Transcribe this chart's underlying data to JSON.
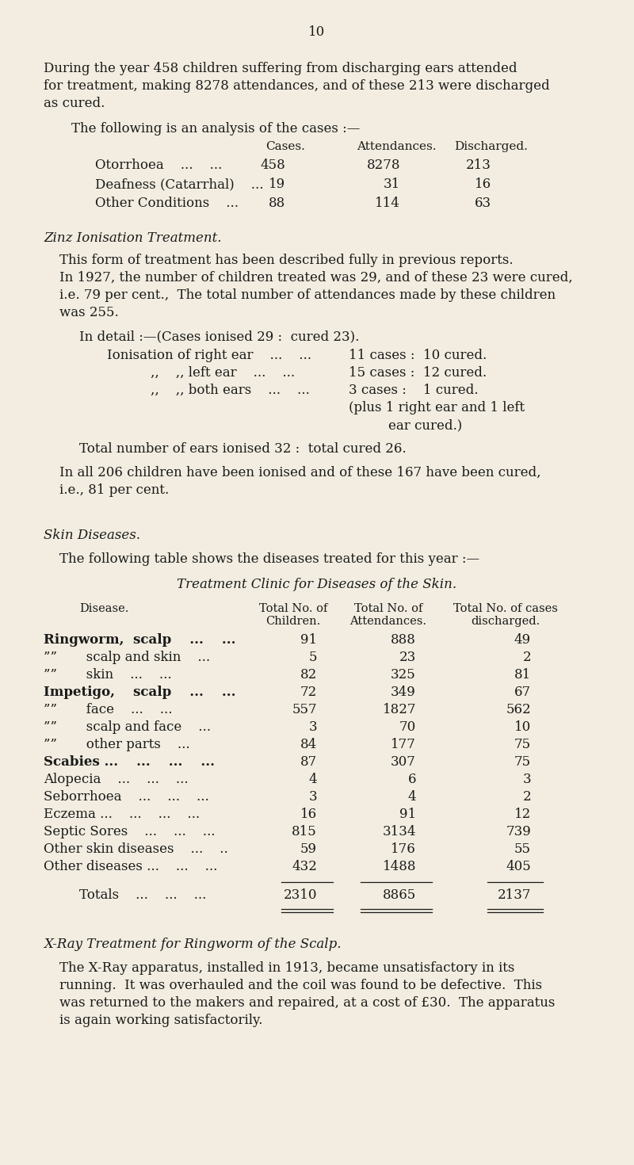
{
  "bg_color": "#f2ede0",
  "text_color": "#1a1a1a",
  "page_number": "10",
  "para1_lines": [
    "During the year 458 children suffering from discharging ears attended",
    "for treatment, making 8278 attendances, and of these 213 were discharged",
    "as cured."
  ],
  "para2": "The following is an analysis of the cases :—",
  "table1_header": [
    "Cases.",
    "Attendances.",
    "Discharged."
  ],
  "table1_rows": [
    [
      "Otorrhoea    ...    ...",
      "458",
      "8278",
      "213"
    ],
    [
      "Deafness (Catarrhal)    ...",
      "19",
      "31",
      "16"
    ],
    [
      "Other Conditions    ...",
      "88",
      "114",
      "63"
    ]
  ],
  "section1_title": "Zinz Ionisation Treatment.",
  "section1_para_lines": [
    "This form of treatment has been described fully in previous reports.",
    "In 1927, the number of children treated was 29, and of these 23 were cured,",
    "i.e. 79 per cent.,  The total number of attendances made by these children",
    "was 255."
  ],
  "detail_header": "In detail :—(Cases ionised 29 :  cured 23).",
  "section1_total": "Total number of ears ionised 32 :  total cured 26.",
  "section1_all_lines": [
    "In all 206 children have been ionised and of these 167 have been cured,",
    "i.e., 81 per cent."
  ],
  "section2_title": "Skin Diseases.",
  "section2_intro": "The following table shows the diseases treated for this year :—",
  "table2_title": "Treatment Clinic for Diseases of the Skin.",
  "table2_rows": [
    [
      "Ringworm,  scalp    ...    ...",
      "91",
      "888",
      "49"
    ],
    [
      "””       scalp and skin    ...",
      "5",
      "23",
      "2"
    ],
    [
      "””       skin    ...    ...",
      "82",
      "325",
      "81"
    ],
    [
      "Impetigo,    scalp    ...    ...",
      "72",
      "349",
      "67"
    ],
    [
      "””       face    ...    ...",
      "557",
      "1827",
      "562"
    ],
    [
      "””       scalp and face    ...",
      "3",
      "70",
      "10"
    ],
    [
      "””       other parts    ...",
      "84",
      "177",
      "75"
    ],
    [
      "Scabies ...    ...    ...    ...",
      "87",
      "307",
      "75"
    ],
    [
      "Alopecia    ...    ...    ...",
      "4",
      "6",
      "3"
    ],
    [
      "Seborrhoea    ...    ...    ...",
      "3",
      "4",
      "2"
    ],
    [
      "Eczema ...    ...    ...    ...",
      "16",
      "91",
      "12"
    ],
    [
      "Septic Sores    ...    ...    ...",
      "815",
      "3134",
      "739"
    ],
    [
      "Other skin diseases    ...    ..",
      "59",
      "176",
      "55"
    ],
    [
      "Other diseases ...    ...    ...",
      "432",
      "1488",
      "405"
    ]
  ],
  "table2_totals": [
    "Totals    ...    ...    ...",
    "2310",
    "8865",
    "2137"
  ],
  "section3_title": "X-Ray Treatment for Ringworm of the Scalp.",
  "section3_para_lines": [
    "The X-Ray apparatus, installed in 1913, became unsatisfactory in its",
    "running.  It was overhauled and the coil was found to be defective.  This",
    "was returned to the makers and repaired, at a cost of £30.  The apparatus",
    "is again working satisfactorily."
  ]
}
